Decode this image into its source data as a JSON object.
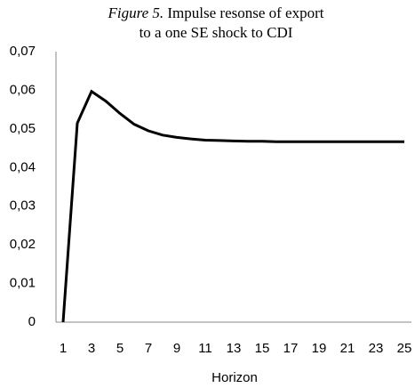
{
  "chart_data": {
    "type": "line",
    "title_label": "Figure 5.",
    "title_lines": [
      "Impulse resonse of export",
      "to a one SE shock to CDI"
    ],
    "x_label": "Horizon",
    "categories": [
      "1",
      null,
      "3",
      null,
      "5",
      null,
      "7",
      null,
      "9",
      null,
      "11",
      null,
      "13",
      null,
      "15",
      null,
      "17",
      null,
      "19",
      null,
      "21",
      null,
      "23",
      null,
      "25"
    ],
    "series": [
      {
        "color": "#000000",
        "values": [
          0,
          0.0515,
          0.0597,
          0.0572,
          0.054,
          0.0512,
          0.0495,
          0.0484,
          0.0478,
          0.0474,
          0.0471,
          0.047,
          0.0469,
          0.0468,
          0.0468,
          0.0467,
          0.0467,
          0.0467,
          0.0467,
          0.0467,
          0.0467,
          0.0467,
          0.0467,
          0.0467,
          0.0467
        ]
      }
    ],
    "ylim": [
      0,
      0.07
    ],
    "yticks": [
      0,
      {
        "value": 0.01,
        "label": "0,01"
      },
      {
        "value": 0.02,
        "label": "0,02"
      },
      {
        "value": 0.03,
        "label": "0,03"
      },
      {
        "value": 0.04,
        "label": "0,04"
      },
      {
        "value": 0.05,
        "label": "0,05"
      },
      {
        "value": 0.06,
        "label": "0,06"
      },
      {
        "value": 0.07,
        "label": "0,07"
      }
    ],
    "grid": false
  }
}
